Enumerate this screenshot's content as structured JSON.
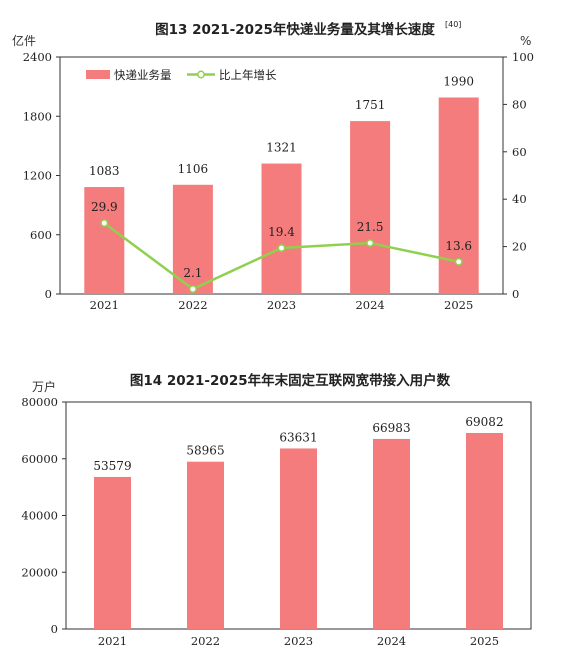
{
  "chart_data": [
    {
      "type": "bar",
      "title": "图13   2021-2025年快递业务量及其增长速度",
      "title_note": "[40]",
      "ylabel_left": "亿件",
      "ylabel_right": "%",
      "categories": [
        "2021",
        "2022",
        "2023",
        "2024",
        "2025"
      ],
      "ylim_left": [
        0,
        2400
      ],
      "yticks_left": [
        "0",
        "600",
        "1200",
        "1800",
        "2400"
      ],
      "ylim_right": [
        0,
        100
      ],
      "yticks_right": [
        "0",
        "20",
        "40",
        "60",
        "80",
        "100"
      ],
      "grid": false,
      "legend_placement": "top-left",
      "series": [
        {
          "name": "快递业务量",
          "type": "bar",
          "axis": "left",
          "values": [
            1083,
            1106,
            1321,
            1751,
            1990
          ],
          "labels": [
            "1083",
            "1106",
            "1321",
            "1751",
            "1990"
          ],
          "color": "#f47c7c"
        },
        {
          "name": "比上年增长",
          "type": "line",
          "axis": "right",
          "values": [
            29.9,
            2.1,
            19.4,
            21.5,
            13.6
          ],
          "labels": [
            "29.9",
            "2.1",
            "19.4",
            "21.5",
            "13.6"
          ],
          "color": "#8fd14f"
        }
      ]
    },
    {
      "type": "bar",
      "title": "图14   2021-2025年年末固定互联网宽带接入用户数",
      "ylabel": "万户",
      "categories": [
        "2021",
        "2022",
        "2023",
        "2024",
        "2025"
      ],
      "ylim": [
        0,
        80000
      ],
      "yticks": [
        "0",
        "20000",
        "40000",
        "60000",
        "80000"
      ],
      "grid": false,
      "series": [
        {
          "values": [
            53579,
            58965,
            63631,
            66983,
            69082
          ],
          "labels": [
            "53579",
            "58965",
            "63631",
            "66983",
            "69082"
          ],
          "color": "#f47c7c"
        }
      ]
    }
  ]
}
